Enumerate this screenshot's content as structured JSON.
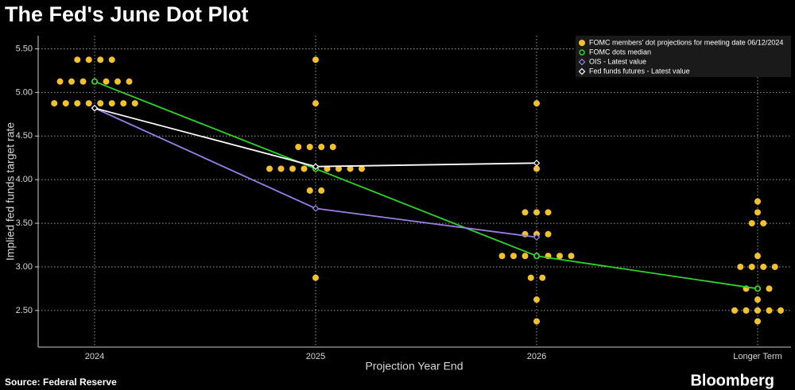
{
  "chart_data": {
    "type": "dot",
    "title": "The Fed's June Dot Plot",
    "y_label": "Implied fed funds target rate",
    "x_label": "Projection Year End",
    "source": "Source: Federal Reserve",
    "brand": "Bloomberg",
    "categories": [
      "2024",
      "2025",
      "2026",
      "Longer Term"
    ],
    "ylim": [
      2.08,
      5.65
    ],
    "yticks": [
      {
        "value": 2.5,
        "label": "2.50"
      },
      {
        "value": 3,
        "label": "3.00"
      },
      {
        "value": 3.5,
        "label": "3.50"
      },
      {
        "value": 4,
        "label": "4.00"
      },
      {
        "value": 4.5,
        "label": "4.50"
      },
      {
        "value": 5,
        "label": "5.00"
      },
      {
        "value": 5.5,
        "label": "5.50"
      }
    ],
    "grid": true,
    "legend": "top-right",
    "dots": {
      "name": "FOMC members' dot projections for meeting date 06/12/2024",
      "color": "#f2c12e",
      "values": [
        [
          5.375,
          5.375,
          5.375,
          5.375,
          5.125,
          5.125,
          5.125,
          5.125,
          5.125,
          5.125,
          5.125,
          4.875,
          4.875,
          4.875,
          4.875,
          4.875,
          4.875,
          4.875,
          4.875
        ],
        [
          5.375,
          4.875,
          4.375,
          4.375,
          4.375,
          4.375,
          4.125,
          4.125,
          4.125,
          4.125,
          4.125,
          4.125,
          4.125,
          4.125,
          4.125,
          3.875,
          3.875,
          2.875
        ],
        [
          4.875,
          4.125,
          3.625,
          3.625,
          3.625,
          3.375,
          3.375,
          3.375,
          3.125,
          3.125,
          3.125,
          3.125,
          3.125,
          3.125,
          3.125,
          2.875,
          2.875,
          2.625,
          2.375
        ],
        [
          3.75,
          3.625,
          3.5,
          3.5,
          3.125,
          3.0,
          3.0,
          3.0,
          3.0,
          2.75,
          2.75,
          2.75,
          2.625,
          2.5,
          2.5,
          2.5,
          2.5,
          2.5,
          2.375
        ]
      ]
    },
    "series": [
      {
        "name": "FOMC dots median",
        "color": "#2bd62b",
        "marker": "circle",
        "values": [
          5.125,
          4.125,
          3.125,
          2.75
        ]
      },
      {
        "name": "OIS - Latest value",
        "color": "#9b7fe6",
        "marker": "diamond",
        "values": [
          4.82,
          3.67,
          3.34,
          null
        ]
      },
      {
        "name": "Fed funds futures - Latest value",
        "color": "#ffffff",
        "marker": "diamond",
        "values": [
          4.82,
          4.15,
          4.19,
          null
        ]
      }
    ]
  }
}
